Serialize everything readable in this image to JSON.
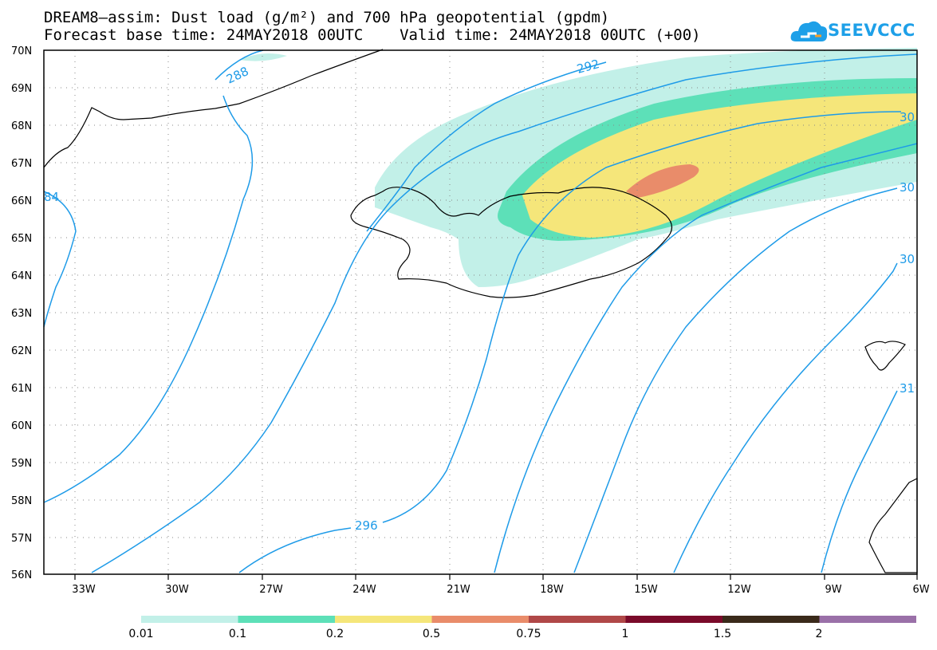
{
  "title_line1": "DREAM8–assim: Dust load (g/m²) and 700 hPa geopotential (gpdm)",
  "title_line2": "Forecast base time: 24MAY2018 00UTC    Valid time: 24MAY2018 00UTC (+00)",
  "logo_text": "SEEVCCC",
  "logo_icon": "cloud-icon",
  "lon_labels": [
    "33W",
    "30W",
    "27W",
    "24W",
    "21W",
    "18W",
    "15W",
    "12W",
    "9W",
    "6W"
  ],
  "lat_labels": [
    "70N",
    "69N",
    "68N",
    "67N",
    "66N",
    "65N",
    "64N",
    "63N",
    "62N",
    "61N",
    "60N",
    "59N",
    "58N",
    "57N",
    "56N"
  ],
  "contour_labels": [
    "288",
    "292",
    "296",
    "84",
    "30",
    "30",
    "30",
    "31"
  ],
  "colorbar": {
    "colors": [
      "#c2f0e8",
      "#5de0b8",
      "#f5e67a",
      "#e98c6a",
      "#b04848",
      "#7a0a2a",
      "#3a2a1a",
      "#9a70a8"
    ],
    "labels": [
      "0.01",
      "0.1",
      "0.2",
      "0.5",
      "0.75",
      "1",
      "1.5",
      "2"
    ]
  },
  "contour_color": "#1e9be8"
}
